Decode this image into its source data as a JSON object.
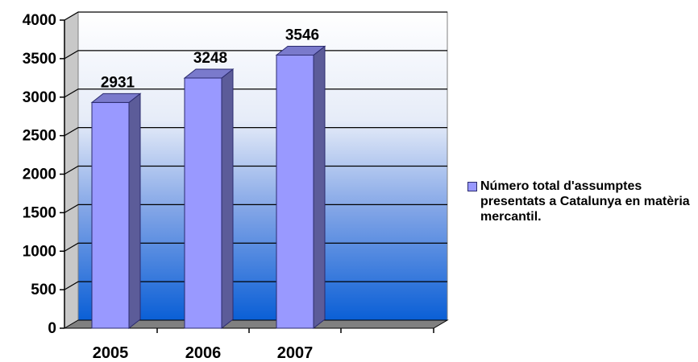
{
  "chart_data": {
    "type": "bar",
    "categories": [
      "2005",
      "2006",
      "2007"
    ],
    "series": [
      {
        "name": "Número total d'assumptes presentats a Catalunya en matèria mercantil.",
        "values": [
          2931,
          3248,
          3546
        ]
      }
    ],
    "ylim": [
      0,
      4000
    ],
    "yticks": [
      "0",
      "500",
      "1000",
      "1500",
      "2000",
      "2500",
      "3000",
      "3500",
      "4000"
    ],
    "data_labels": [
      "2931",
      "3248",
      "3546"
    ],
    "grid": true,
    "legend_position": "right",
    "colors": {
      "bar_front": "#9999ff",
      "bar_side": "#5c5c99",
      "bar_top": "#7a7acc",
      "bar_edge": "#2b2b6e",
      "wall_top": "#ffffff",
      "wall_bottom": "#0a5fd6",
      "floor": "#808080"
    }
  }
}
